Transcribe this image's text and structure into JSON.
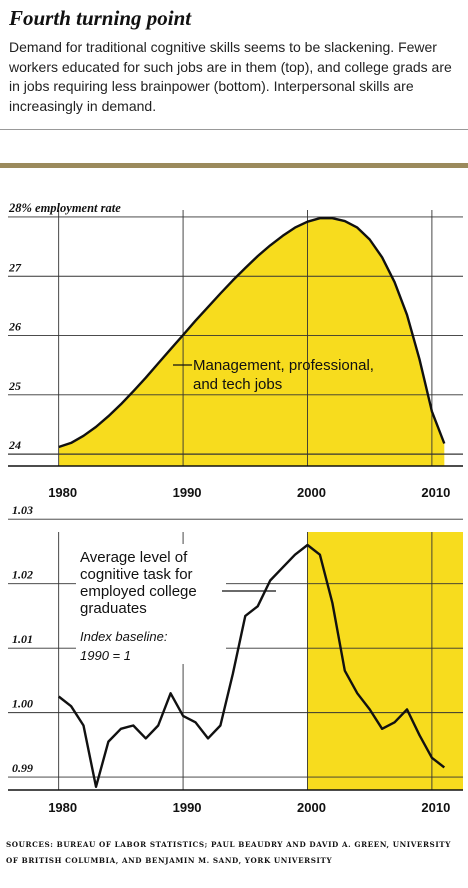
{
  "header": {
    "title": "Fourth turning point",
    "description": "Demand for traditional cognitive skills seems to be slackening. Fewer workers educated for such jobs are in them (top), and college grads are in jobs requiring less brainpower (bottom). Interpersonal skills are increasingly in demand."
  },
  "colors": {
    "fill": "#f7dc1e",
    "line": "#111111",
    "grid": "#333333",
    "rule": "#9b8a5c"
  },
  "chart_data": [
    {
      "type": "area",
      "ylabel": "28% employment rate",
      "xlim": [
        1978.5,
        2012.5
      ],
      "ylim": [
        23.8,
        28.05
      ],
      "xticks": [
        1980,
        1990,
        2000,
        2010
      ],
      "yticks": [
        24,
        25,
        26,
        27,
        28
      ],
      "ytick_labels": [
        "24",
        "25",
        "26",
        "27",
        "28% employment rate"
      ],
      "grid": true,
      "annotation": [
        "Management, professional,",
        "and tech jobs"
      ],
      "x": [
        1980,
        1981,
        1982,
        1983,
        1984,
        1985,
        1986,
        1987,
        1988,
        1989,
        1990,
        1991,
        1992,
        1993,
        1994,
        1995,
        1996,
        1997,
        1998,
        1999,
        2000,
        2001,
        2002,
        2003,
        2004,
        2005,
        2006,
        2007,
        2008,
        2009,
        2010,
        2011
      ],
      "values": [
        24.12,
        24.19,
        24.31,
        24.46,
        24.64,
        24.84,
        25.06,
        25.29,
        25.53,
        25.77,
        26.01,
        26.25,
        26.48,
        26.71,
        26.93,
        27.14,
        27.34,
        27.52,
        27.68,
        27.82,
        27.92,
        27.98,
        27.98,
        27.93,
        27.82,
        27.62,
        27.32,
        26.9,
        26.35,
        25.6,
        24.72,
        24.18
      ]
    },
    {
      "type": "line",
      "xlim": [
        1978.5,
        2012.5
      ],
      "ylim": [
        0.988,
        1.0305
      ],
      "xticks": [
        1980,
        1990,
        2000,
        2010
      ],
      "yticks": [
        0.99,
        1.0,
        1.01,
        1.02,
        1.03
      ],
      "ytick_labels": [
        "0.99",
        "1.00",
        "1.01",
        "1.02",
        "1.03"
      ],
      "grid": true,
      "highlight_range": [
        2000,
        2012.5
      ],
      "annotation": [
        "Average level of",
        "cognitive task for",
        "employed college",
        "graduates"
      ],
      "note": [
        "Index baseline:",
        "1990 = 1"
      ],
      "x": [
        1980,
        1981,
        1982,
        1983,
        1984,
        1985,
        1986,
        1987,
        1988,
        1989,
        1990,
        1991,
        1992,
        1993,
        1994,
        1995,
        1996,
        1997,
        1998,
        1999,
        2000,
        2001,
        2002,
        2003,
        2004,
        2005,
        2006,
        2007,
        2008,
        2009,
        2010,
        2011
      ],
      "values": [
        1.0025,
        1.001,
        0.998,
        0.9885,
        0.9955,
        0.9975,
        0.998,
        0.996,
        0.998,
        1.003,
        0.9995,
        0.9985,
        0.996,
        0.998,
        1.006,
        1.015,
        1.0165,
        1.0205,
        1.0225,
        1.0245,
        1.026,
        1.0245,
        1.017,
        1.0065,
        1.003,
        1.0005,
        0.9975,
        0.9985,
        1.0005,
        0.9965,
        0.993,
        0.9915
      ]
    }
  ],
  "footer": {
    "sources": "SOURCES: BUREAU OF LABOR STATISTICS; PAUL BEAUDRY AND DAVID A. GREEN, UNIVERSITY OF BRITISH COLUMBIA, AND BENJAMIN M. SAND, YORK UNIVERSITY"
  }
}
